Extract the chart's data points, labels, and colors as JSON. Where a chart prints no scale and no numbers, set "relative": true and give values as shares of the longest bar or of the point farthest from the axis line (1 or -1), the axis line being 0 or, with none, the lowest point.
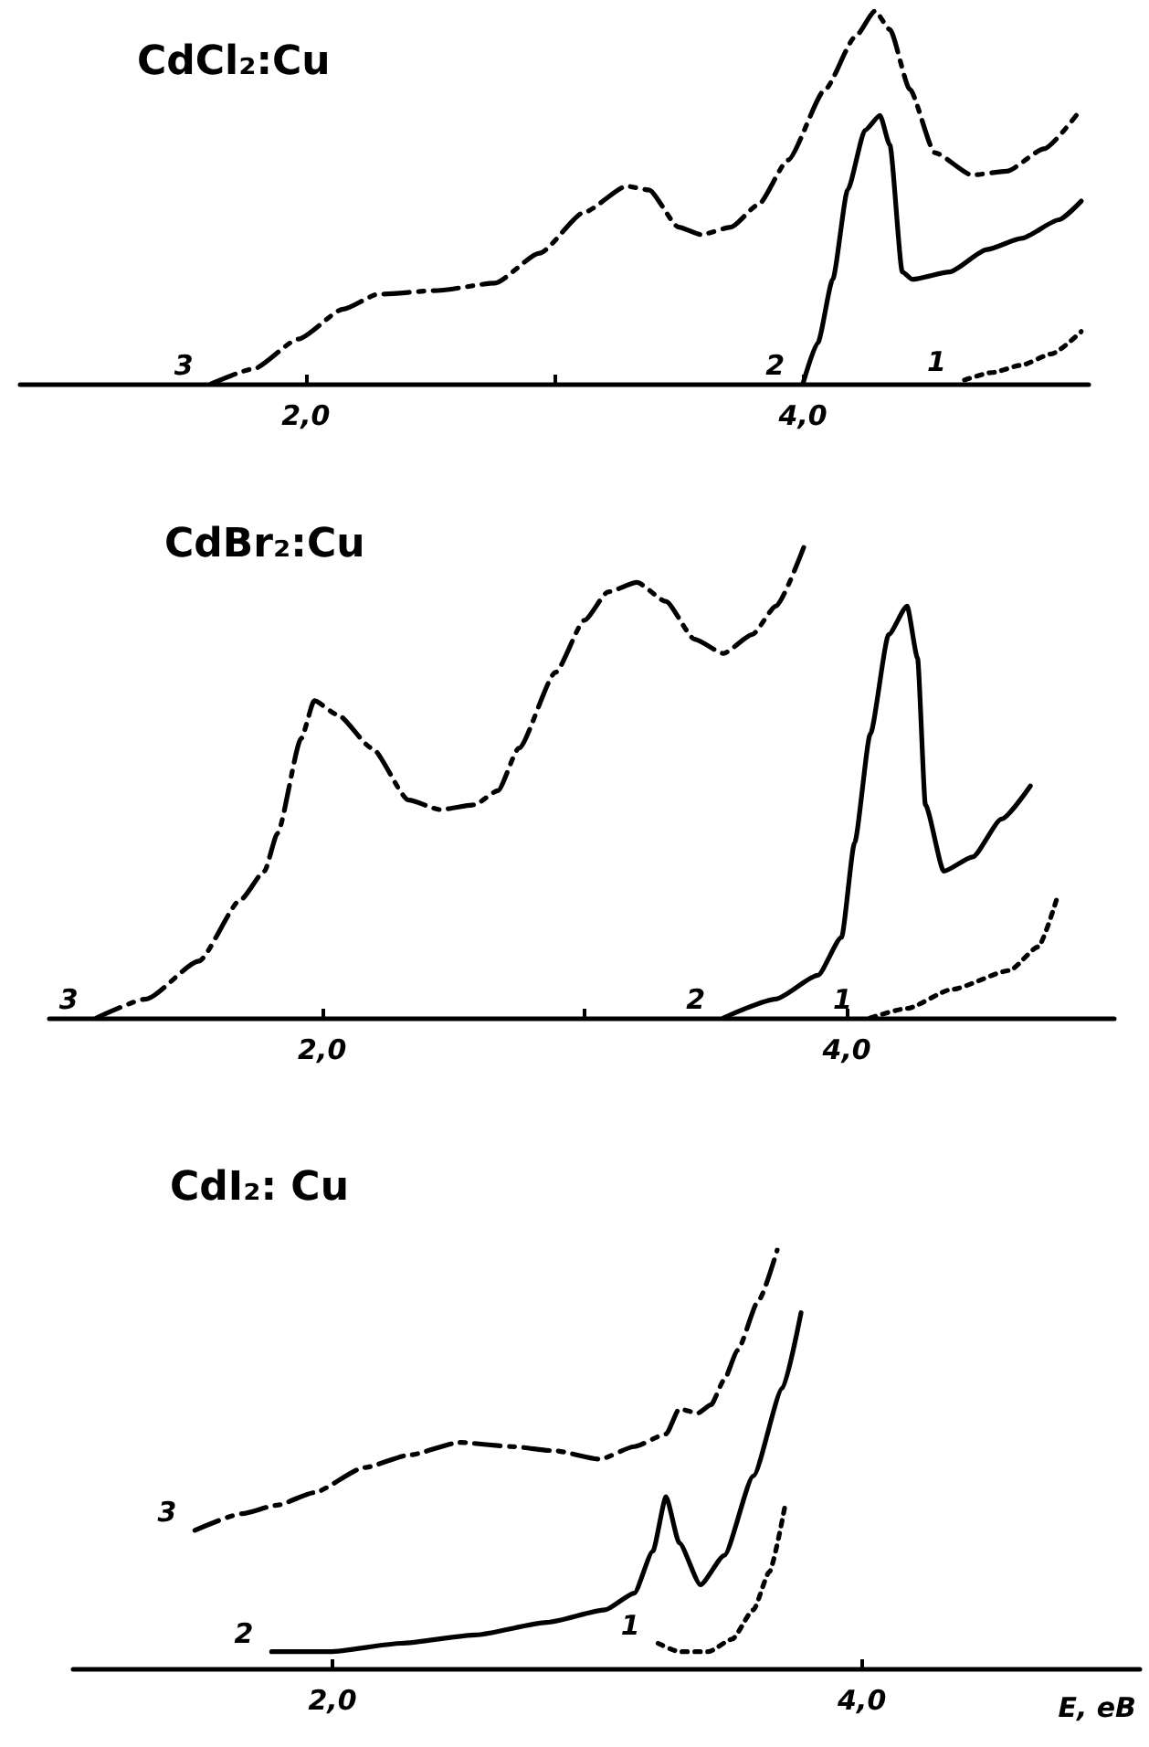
{
  "chart_data": [
    {
      "type": "line",
      "title": "CdCl₂:Cu",
      "relative": true,
      "xlim": [
        0.85,
        5.15
      ],
      "xticks": [
        {
          "value": 2,
          "label": "2,0"
        },
        {
          "value": 3,
          "label": null
        },
        {
          "value": 4,
          "label": "4,0"
        }
      ],
      "tick_labels": "x",
      "grid": false,
      "legend": false,
      "marker": "none",
      "series": [
        {
          "name": "3",
          "color": "#000000",
          "line_style": "dashed",
          "x": [
            1.62,
            1.79,
            1.97,
            2.15,
            2.29,
            2.53,
            2.76,
            2.94,
            3.12,
            3.29,
            3.38,
            3.5,
            3.59,
            3.71,
            3.82,
            3.94,
            4.09,
            4.21,
            4.29,
            4.35,
            4.43,
            4.53,
            4.68,
            4.82,
            4.97,
            5.1
          ],
          "values": [
            0,
            0.04,
            0.12,
            0.2,
            0.24,
            0.25,
            0.27,
            0.35,
            0.46,
            0.53,
            0.52,
            0.42,
            0.4,
            0.42,
            0.48,
            0.6,
            0.79,
            0.93,
            1,
            0.95,
            0.79,
            0.62,
            0.56,
            0.57,
            0.63,
            0.72
          ]
        },
        {
          "name": "2",
          "color": "#000000",
          "line_style": "solid",
          "x": [
            4.0,
            4.06,
            4.12,
            4.18,
            4.25,
            4.31,
            4.35,
            4.4,
            4.44,
            4.59,
            4.74,
            4.88,
            5.03,
            5.12
          ],
          "values": [
            0,
            0.11,
            0.28,
            0.52,
            0.68,
            0.72,
            0.64,
            0.3,
            0.28,
            0.3,
            0.36,
            0.39,
            0.44,
            0.49
          ]
        },
        {
          "name": "1",
          "color": "#000000",
          "line_style": "dotted",
          "x": [
            4.65,
            4.76,
            4.88,
            5.0,
            5.12
          ],
          "values": [
            0.01,
            0.03,
            0.05,
            0.08,
            0.14
          ]
        }
      ]
    },
    {
      "type": "line",
      "title": "CdBr₂:Cu",
      "relative": true,
      "xlim": [
        0.96,
        5.02
      ],
      "xticks": [
        {
          "value": 2,
          "label": "2,0"
        },
        {
          "value": 3,
          "label": null
        },
        {
          "value": 4,
          "label": "4,0"
        }
      ],
      "tick_labels": "x",
      "grid": false,
      "legend": false,
      "marker": "none",
      "series": [
        {
          "name": "3",
          "color": "#000000",
          "line_style": "dashed",
          "x": [
            1.14,
            1.33,
            1.53,
            1.69,
            1.78,
            1.83,
            1.92,
            1.97,
            2.06,
            2.19,
            2.33,
            2.45,
            2.58,
            2.67,
            2.75,
            2.89,
            3.0,
            3.09,
            3.2,
            3.31,
            3.42,
            3.53,
            3.64,
            3.73,
            3.84
          ],
          "values": [
            0,
            0.04,
            0.12,
            0.25,
            0.31,
            0.39,
            0.59,
            0.67,
            0.64,
            0.57,
            0.46,
            0.44,
            0.45,
            0.48,
            0.57,
            0.73,
            0.84,
            0.9,
            0.92,
            0.88,
            0.8,
            0.77,
            0.81,
            0.87,
            1
          ]
        },
        {
          "name": "2",
          "color": "#000000",
          "line_style": "solid",
          "x": [
            3.53,
            3.73,
            3.89,
            3.98,
            4.03,
            4.09,
            4.16,
            4.23,
            4.27,
            4.3,
            4.37,
            4.48,
            4.59,
            4.7
          ],
          "values": [
            0,
            0.04,
            0.09,
            0.17,
            0.37,
            0.6,
            0.81,
            0.87,
            0.76,
            0.45,
            0.31,
            0.34,
            0.42,
            0.49
          ]
        },
        {
          "name": "1",
          "color": "#000000",
          "line_style": "dotted",
          "x": [
            4.09,
            4.23,
            4.4,
            4.62,
            4.73,
            4.8
          ],
          "values": [
            0,
            0.02,
            0.06,
            0.1,
            0.15,
            0.25
          ]
        }
      ]
    },
    {
      "type": "line",
      "title": "CdI₂: Cu",
      "xlabel": "E, еВ",
      "relative": true,
      "xlim": [
        1.02,
        5.05
      ],
      "xticks": [
        {
          "value": 2,
          "label": "2,0"
        },
        {
          "value": 4,
          "label": "4,0"
        }
      ],
      "tick_labels": "x",
      "grid": false,
      "legend": false,
      "marker": "none",
      "series": [
        {
          "name": "3",
          "color": "#000000",
          "line_style": "dashed",
          "x": [
            1.48,
            1.66,
            1.79,
            1.93,
            2.12,
            2.29,
            2.48,
            2.68,
            2.84,
            3.01,
            3.14,
            3.26,
            3.31,
            3.38,
            3.43,
            3.48,
            3.53,
            3.61,
            3.68
          ],
          "values": [
            0.33,
            0.37,
            0.39,
            0.42,
            0.48,
            0.51,
            0.54,
            0.53,
            0.52,
            0.5,
            0.53,
            0.56,
            0.62,
            0.61,
            0.63,
            0.69,
            0.76,
            0.88,
            1
          ]
        },
        {
          "name": "2",
          "color": "#000000",
          "line_style": "solid",
          "x": [
            1.77,
            1.99,
            2.26,
            2.54,
            2.81,
            3.03,
            3.14,
            3.21,
            3.26,
            3.31,
            3.39,
            3.48,
            3.59,
            3.7,
            3.77
          ],
          "values": [
            0.04,
            0.04,
            0.06,
            0.08,
            0.11,
            0.14,
            0.18,
            0.28,
            0.41,
            0.3,
            0.2,
            0.27,
            0.46,
            0.67,
            0.85
          ]
        },
        {
          "name": "1",
          "color": "#000000",
          "line_style": "dotted",
          "x": [
            3.23,
            3.31,
            3.42,
            3.51,
            3.59,
            3.65,
            3.71
          ],
          "values": [
            0.06,
            0.04,
            0.04,
            0.07,
            0.14,
            0.23,
            0.39
          ]
        }
      ]
    }
  ]
}
